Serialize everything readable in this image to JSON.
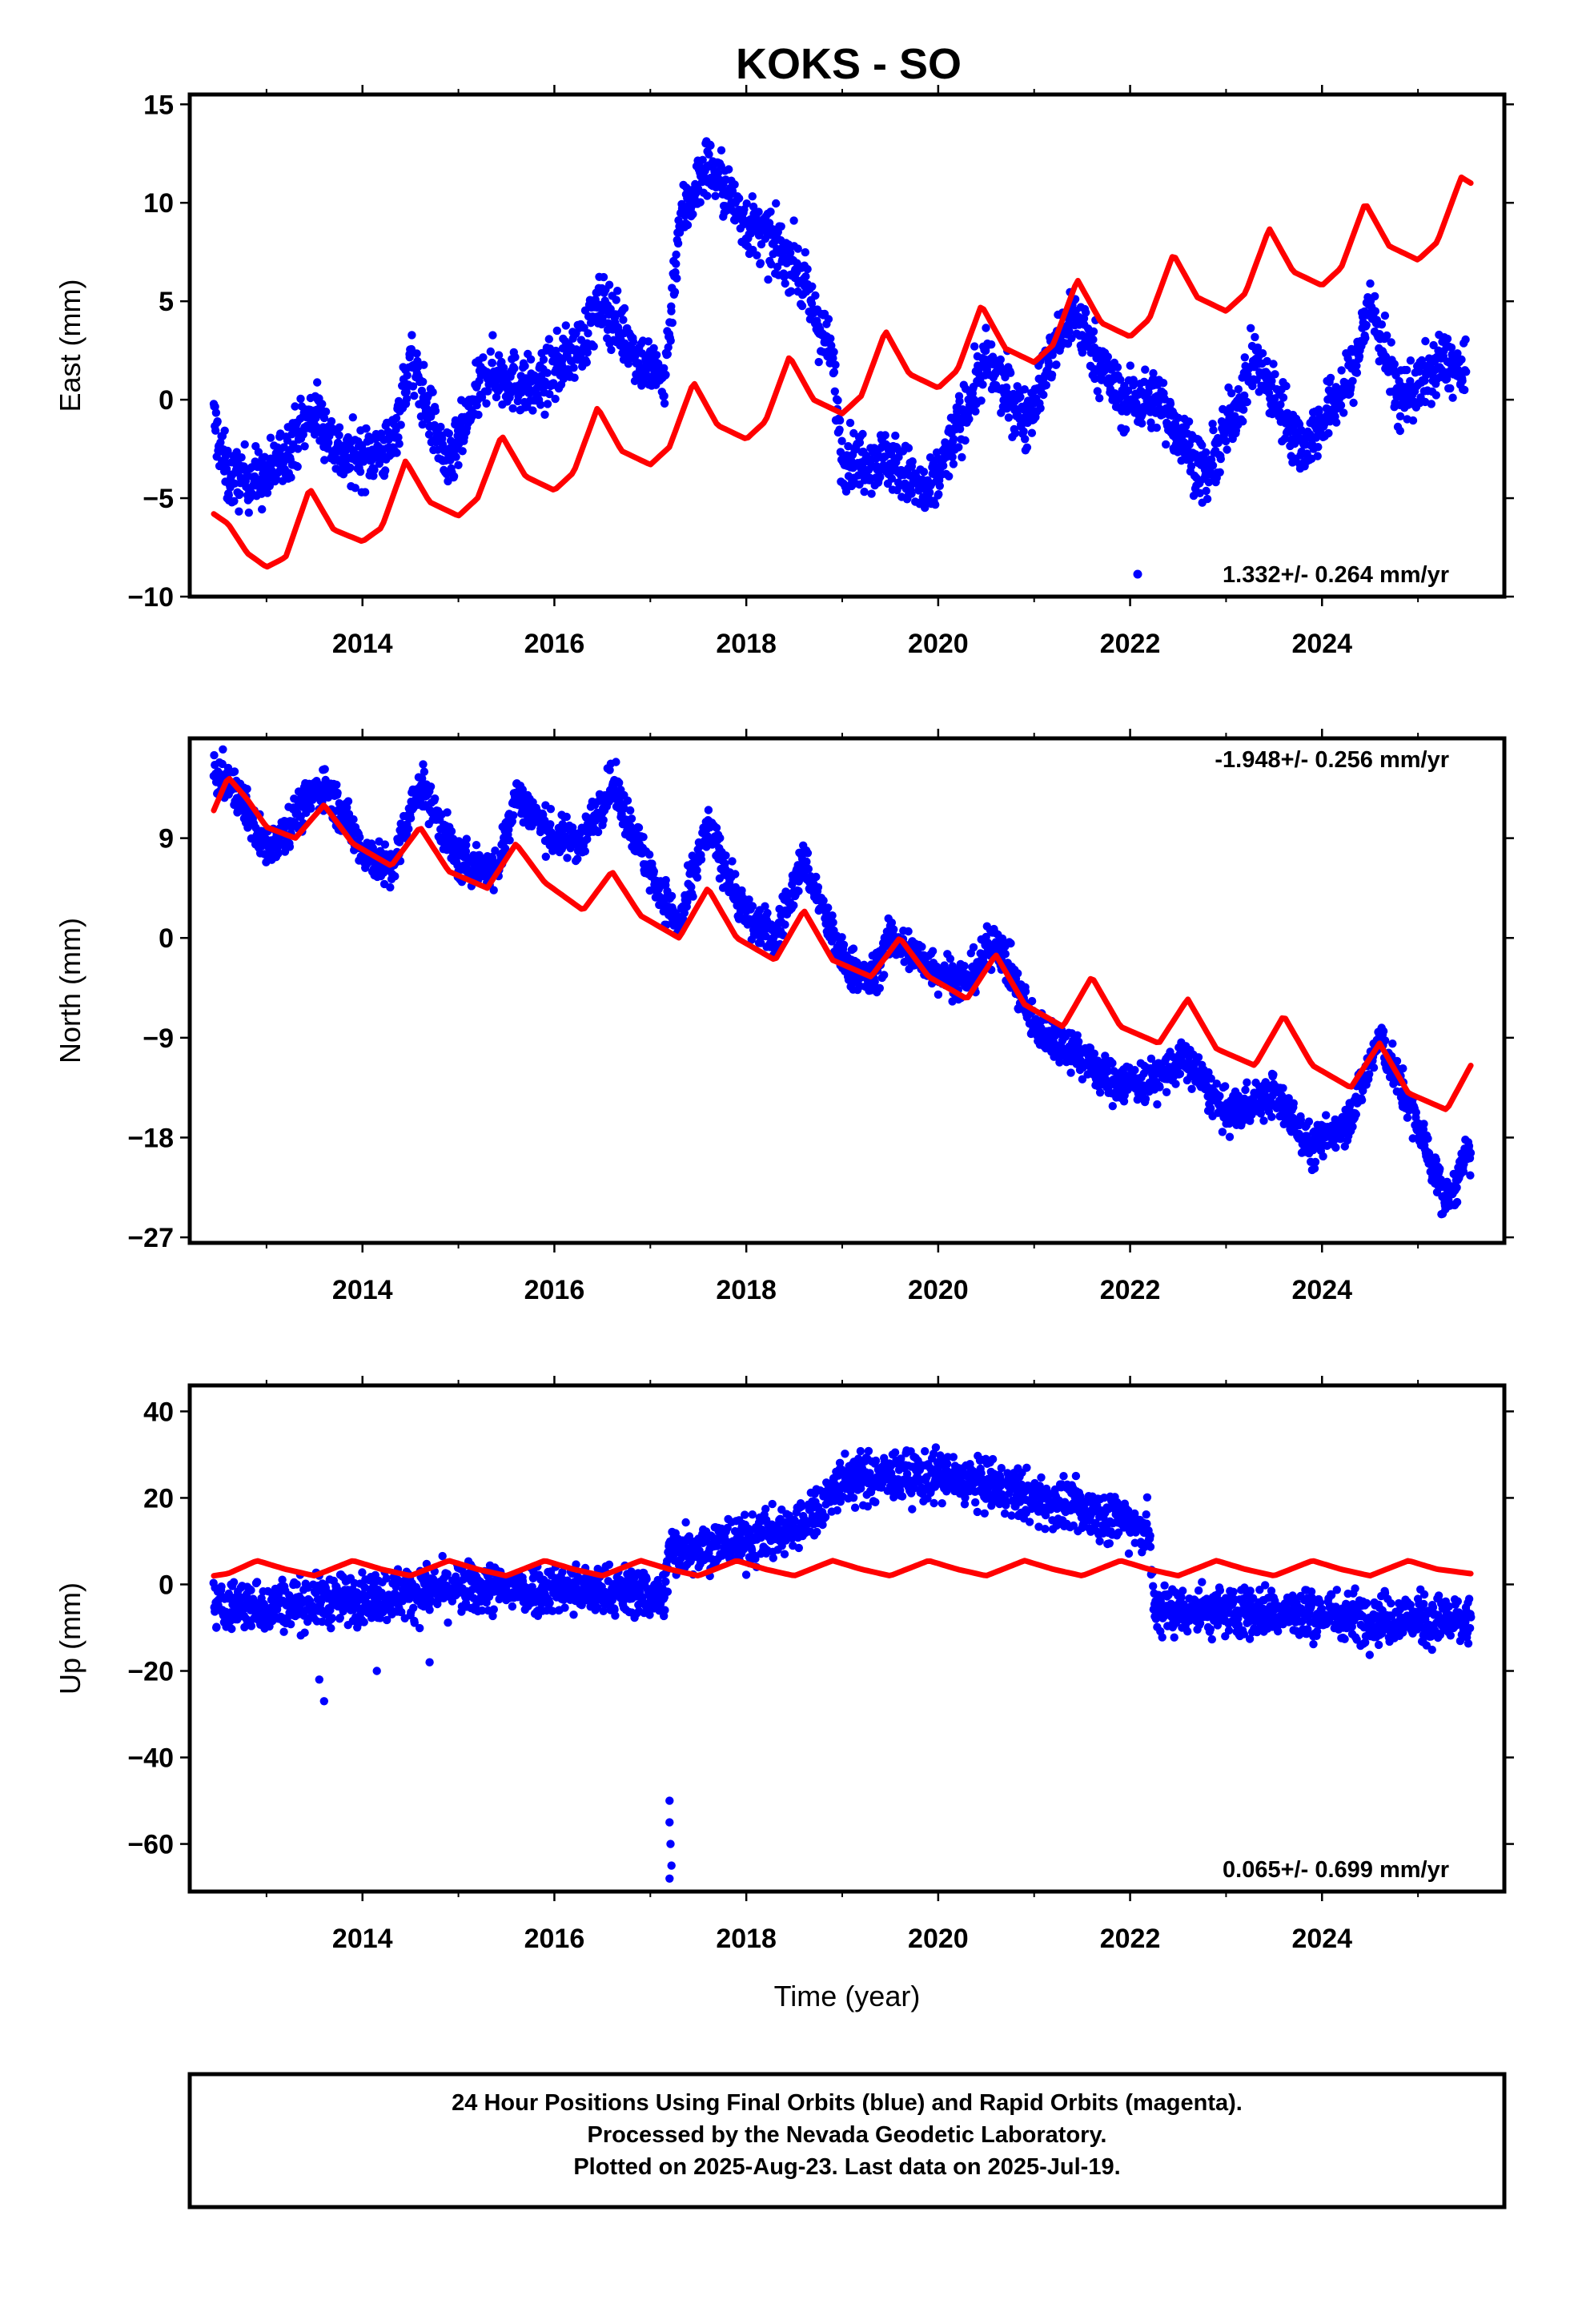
{
  "title": "KOKS - SO",
  "chart_data": [
    {
      "type": "scatter",
      "name": "east",
      "ylabel": "East (mm)",
      "xlim": [
        2012.2,
        2025.9
      ],
      "ylim": [
        -10,
        15.5
      ],
      "xticks": [
        "2014",
        "2016",
        "2018",
        "2020",
        "2022",
        "2024"
      ],
      "yticks": [
        "−10",
        "−5",
        "0",
        "5",
        "10",
        "15"
      ],
      "ytick_values": [
        -10,
        -5,
        0,
        5,
        10,
        15
      ],
      "rate_label": "1.332+/- 0.264 mm/yr",
      "rate_position": "bottom-right",
      "points_color": "#0000ff",
      "model_color": "#ff0000",
      "points_trend": [
        [
          2012.45,
          -1
        ],
        [
          2012.6,
          -4
        ],
        [
          2013.0,
          -4
        ],
        [
          2013.5,
          -0.5
        ],
        [
          2013.8,
          -3
        ],
        [
          2014.3,
          -2.5
        ],
        [
          2014.5,
          2
        ],
        [
          2014.9,
          -3.5
        ],
        [
          2015.3,
          1.5
        ],
        [
          2015.8,
          0.5
        ],
        [
          2016.3,
          3
        ],
        [
          2016.5,
          5
        ],
        [
          2016.9,
          2
        ],
        [
          2017.15,
          1
        ],
        [
          2017.3,
          9
        ],
        [
          2017.6,
          12
        ],
        [
          2018.0,
          9
        ],
        [
          2018.5,
          7
        ],
        [
          2018.9,
          2
        ],
        [
          2019.0,
          -3
        ],
        [
          2019.5,
          -3
        ],
        [
          2019.9,
          -5
        ],
        [
          2020.5,
          2
        ],
        [
          2020.9,
          -1
        ],
        [
          2021.4,
          4.5
        ],
        [
          2021.9,
          0
        ],
        [
          2022.3,
          0
        ],
        [
          2022.8,
          -4
        ],
        [
          2023.3,
          2
        ],
        [
          2023.8,
          -2.5
        ],
        [
          2024.3,
          1
        ],
        [
          2024.5,
          5
        ],
        [
          2024.8,
          0
        ],
        [
          2025.3,
          2
        ],
        [
          2025.5,
          1
        ]
      ],
      "model": [
        [
          2012.45,
          -5.8
        ],
        [
          2012.6,
          -6.3
        ],
        [
          2012.8,
          -7.8
        ],
        [
          2013.0,
          -8.5
        ],
        [
          2013.2,
          -8.0
        ],
        [
          2013.45,
          -4.5
        ],
        [
          2013.7,
          -6.6
        ],
        [
          2014.0,
          -7.2
        ],
        [
          2014.2,
          -6.5
        ],
        [
          2014.45,
          -3.1
        ],
        [
          2014.7,
          -5.2
        ],
        [
          2015.0,
          -5.9
        ],
        [
          2015.2,
          -5.0
        ],
        [
          2015.45,
          -1.8
        ],
        [
          2015.7,
          -3.9
        ],
        [
          2016.0,
          -4.6
        ],
        [
          2016.2,
          -3.7
        ],
        [
          2016.45,
          -0.4
        ],
        [
          2016.7,
          -2.6
        ],
        [
          2017.0,
          -3.3
        ],
        [
          2017.2,
          -2.4
        ],
        [
          2017.45,
          0.9
        ],
        [
          2017.7,
          -1.3
        ],
        [
          2018.0,
          -2.0
        ],
        [
          2018.2,
          -1.1
        ],
        [
          2018.45,
          2.2
        ],
        [
          2018.7,
          0.0
        ],
        [
          2019.0,
          -0.7
        ],
        [
          2019.2,
          0.2
        ],
        [
          2019.45,
          3.5
        ],
        [
          2019.7,
          1.3
        ],
        [
          2020.0,
          0.6
        ],
        [
          2020.2,
          1.5
        ],
        [
          2020.45,
          4.8
        ],
        [
          2020.7,
          2.6
        ],
        [
          2021.0,
          1.9
        ],
        [
          2021.2,
          2.8
        ],
        [
          2021.45,
          6.1
        ],
        [
          2021.7,
          3.9
        ],
        [
          2022.0,
          3.2
        ],
        [
          2022.2,
          4.1
        ],
        [
          2022.45,
          7.4
        ],
        [
          2022.7,
          5.2
        ],
        [
          2023.0,
          4.5
        ],
        [
          2023.2,
          5.4
        ],
        [
          2023.45,
          8.7
        ],
        [
          2023.7,
          6.5
        ],
        [
          2024.0,
          5.8
        ],
        [
          2024.2,
          6.7
        ],
        [
          2024.45,
          10.0
        ],
        [
          2024.7,
          7.8
        ],
        [
          2025.0,
          7.1
        ],
        [
          2025.2,
          8.0
        ],
        [
          2025.45,
          11.3
        ],
        [
          2025.55,
          11.0
        ]
      ]
    },
    {
      "type": "scatter",
      "name": "north",
      "ylabel": "North (mm)",
      "xlim": [
        2012.2,
        2025.9
      ],
      "ylim": [
        -27.5,
        18
      ],
      "xticks": [
        "2014",
        "2016",
        "2018",
        "2020",
        "2022",
        "2024"
      ],
      "yticks": [
        "9",
        "0",
        "−9",
        "−18",
        "−27"
      ],
      "ytick_values": [
        9,
        0,
        -9,
        -18,
        -27
      ],
      "rate_label": "-1.948+/- 0.256 mm/yr",
      "rate_position": "top-right",
      "points_color": "#0000ff",
      "model_color": "#ff0000",
      "points_trend": [
        [
          2012.45,
          15
        ],
        [
          2012.7,
          13
        ],
        [
          2013.0,
          8
        ],
        [
          2013.6,
          14
        ],
        [
          2014.0,
          8
        ],
        [
          2014.3,
          6
        ],
        [
          2014.6,
          14
        ],
        [
          2015.0,
          7
        ],
        [
          2015.4,
          6
        ],
        [
          2015.6,
          13
        ],
        [
          2016.0,
          9
        ],
        [
          2016.3,
          9
        ],
        [
          2016.6,
          14
        ],
        [
          2017.0,
          6
        ],
        [
          2017.3,
          1
        ],
        [
          2017.6,
          10
        ],
        [
          2018.0,
          2
        ],
        [
          2018.3,
          0
        ],
        [
          2018.6,
          7
        ],
        [
          2019.0,
          -2
        ],
        [
          2019.3,
          -4
        ],
        [
          2019.5,
          0
        ],
        [
          2020.0,
          -3
        ],
        [
          2020.3,
          -4
        ],
        [
          2020.6,
          0
        ],
        [
          2021.0,
          -8
        ],
        [
          2021.4,
          -10
        ],
        [
          2021.8,
          -13
        ],
        [
          2022.2,
          -13
        ],
        [
          2022.6,
          -11
        ],
        [
          2023.0,
          -16
        ],
        [
          2023.5,
          -14
        ],
        [
          2023.9,
          -19
        ],
        [
          2024.3,
          -16
        ],
        [
          2024.6,
          -9
        ],
        [
          2025.0,
          -17
        ],
        [
          2025.3,
          -24
        ],
        [
          2025.55,
          -19
        ]
      ],
      "model": [
        [
          2012.45,
          11.5
        ],
        [
          2012.6,
          14.5
        ],
        [
          2012.8,
          12.5
        ],
        [
          2013.0,
          10.0
        ],
        [
          2013.3,
          9.0
        ],
        [
          2013.6,
          12.0
        ],
        [
          2013.9,
          8.5
        ],
        [
          2014.3,
          6.5
        ],
        [
          2014.6,
          10.0
        ],
        [
          2014.9,
          6.0
        ],
        [
          2015.3,
          4.5
        ],
        [
          2015.6,
          8.5
        ],
        [
          2015.9,
          5.0
        ],
        [
          2016.3,
          2.5
        ],
        [
          2016.6,
          6.0
        ],
        [
          2016.9,
          2.0
        ],
        [
          2017.3,
          0.0
        ],
        [
          2017.6,
          4.5
        ],
        [
          2017.9,
          0.0
        ],
        [
          2018.3,
          -2.0
        ],
        [
          2018.6,
          2.5
        ],
        [
          2018.9,
          -2.0
        ],
        [
          2019.3,
          -3.5
        ],
        [
          2019.6,
          0.0
        ],
        [
          2019.9,
          -3.5
        ],
        [
          2020.3,
          -5.5
        ],
        [
          2020.6,
          -1.5
        ],
        [
          2020.9,
          -6.0
        ],
        [
          2021.3,
          -8.0
        ],
        [
          2021.6,
          -3.5
        ],
        [
          2021.9,
          -8.0
        ],
        [
          2022.3,
          -9.5
        ],
        [
          2022.6,
          -5.5
        ],
        [
          2022.9,
          -10.0
        ],
        [
          2023.3,
          -11.5
        ],
        [
          2023.6,
          -7.0
        ],
        [
          2023.9,
          -11.5
        ],
        [
          2024.3,
          -13.5
        ],
        [
          2024.6,
          -9.5
        ],
        [
          2024.9,
          -14.0
        ],
        [
          2025.3,
          -15.5
        ],
        [
          2025.55,
          -11.5
        ]
      ]
    },
    {
      "type": "scatter",
      "name": "up",
      "ylabel": "Up (mm)",
      "xlabel": "Time (year)",
      "xlim": [
        2012.2,
        2025.9
      ],
      "ylim": [
        -71,
        46
      ],
      "xticks": [
        "2014",
        "2016",
        "2018",
        "2020",
        "2022",
        "2024"
      ],
      "yticks": [
        "40",
        "20",
        "0",
        "−20",
        "−40",
        "−60"
      ],
      "ytick_values": [
        40,
        20,
        0,
        -20,
        -40,
        -60
      ],
      "rate_label": "0.065+/- 0.699 mm/yr",
      "rate_position": "bottom-right",
      "points_color": "#0000ff",
      "model_color": "#ff0000",
      "points_trend": [
        [
          2012.45,
          -5
        ],
        [
          2013.0,
          -5
        ],
        [
          2014.0,
          -3
        ],
        [
          2015.0,
          -1
        ],
        [
          2016.0,
          -1
        ],
        [
          2017.0,
          -2
        ],
        [
          2017.15,
          -3
        ],
        [
          2017.2,
          8
        ],
        [
          2018.0,
          10
        ],
        [
          2018.6,
          14
        ],
        [
          2019.0,
          24
        ],
        [
          2019.5,
          25
        ],
        [
          2020.0,
          25
        ],
        [
          2020.5,
          23
        ],
        [
          2021.0,
          20
        ],
        [
          2021.5,
          17
        ],
        [
          2022.0,
          15
        ],
        [
          2022.2,
          12
        ],
        [
          2022.25,
          -6
        ],
        [
          2023.0,
          -6
        ],
        [
          2024.0,
          -7
        ],
        [
          2025.0,
          -8
        ],
        [
          2025.55,
          -9
        ]
      ],
      "model": [
        [
          2012.45,
          2.0
        ],
        [
          2012.6,
          2.5
        ],
        [
          2012.9,
          5.5
        ],
        [
          2013.2,
          3.5
        ],
        [
          2013.5,
          2.0
        ],
        [
          2013.9,
          5.5
        ],
        [
          2014.2,
          3.5
        ],
        [
          2014.5,
          2.0
        ],
        [
          2014.9,
          5.5
        ],
        [
          2015.2,
          3.5
        ],
        [
          2015.5,
          2.0
        ],
        [
          2015.9,
          5.5
        ],
        [
          2016.2,
          3.5
        ],
        [
          2016.5,
          2.0
        ],
        [
          2016.9,
          5.5
        ],
        [
          2017.2,
          3.5
        ],
        [
          2017.5,
          2.0
        ],
        [
          2017.9,
          5.5
        ],
        [
          2018.2,
          3.5
        ],
        [
          2018.5,
          2.0
        ],
        [
          2018.9,
          5.5
        ],
        [
          2019.2,
          3.5
        ],
        [
          2019.5,
          2.0
        ],
        [
          2019.9,
          5.5
        ],
        [
          2020.2,
          3.5
        ],
        [
          2020.5,
          2.0
        ],
        [
          2020.9,
          5.5
        ],
        [
          2021.2,
          3.5
        ],
        [
          2021.5,
          2.0
        ],
        [
          2021.9,
          5.5
        ],
        [
          2022.2,
          3.5
        ],
        [
          2022.5,
          2.0
        ],
        [
          2022.9,
          5.5
        ],
        [
          2023.2,
          3.5
        ],
        [
          2023.5,
          2.0
        ],
        [
          2023.9,
          5.5
        ],
        [
          2024.2,
          3.5
        ],
        [
          2024.5,
          2.0
        ],
        [
          2024.9,
          5.5
        ],
        [
          2025.2,
          3.5
        ],
        [
          2025.55,
          2.5
        ]
      ],
      "outliers": [
        [
          2017.2,
          -50
        ],
        [
          2017.2,
          -55
        ],
        [
          2017.21,
          -60
        ],
        [
          2017.22,
          -65
        ],
        [
          2017.2,
          -68
        ],
        [
          2013.55,
          -22
        ],
        [
          2013.6,
          -27
        ],
        [
          2014.15,
          -20
        ],
        [
          2014.7,
          -18
        ]
      ]
    }
  ],
  "caption": {
    "line1": "24 Hour Positions Using Final Orbits (blue) and Rapid Orbits (magenta).",
    "line2": "Processed by the Nevada Geodetic Laboratory.",
    "line3": "Plotted on 2025-Aug-23. Last data on 2025-Jul-19."
  }
}
